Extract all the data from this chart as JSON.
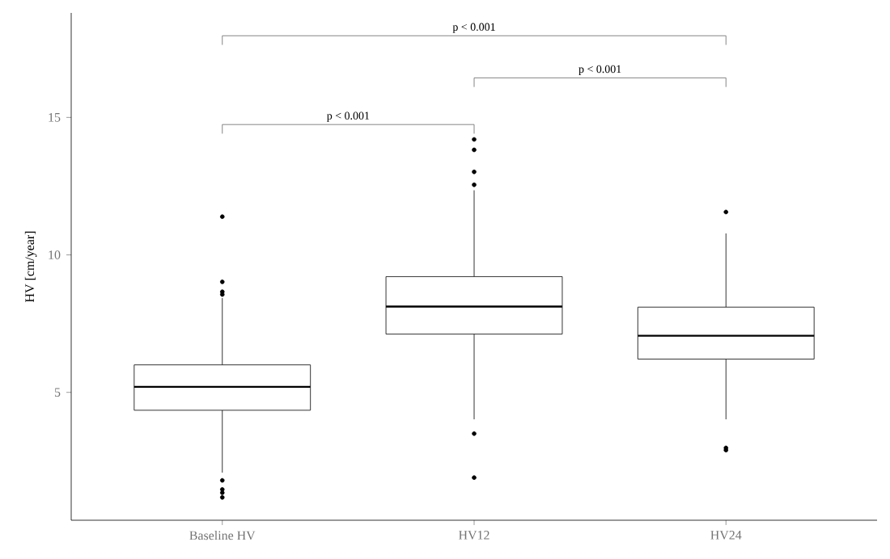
{
  "chart_data": {
    "type": "box",
    "ylabel": "HV [cm/year]",
    "categories": [
      "Baseline HV",
      "HV12",
      "HV24"
    ],
    "boxes": [
      {
        "low": 2.08,
        "q1": 4.35,
        "median": 5.2,
        "q3": 6.0,
        "high": 8.43,
        "outliers": [
          11.39,
          9.02,
          8.66,
          8.56,
          1.8,
          1.47,
          1.35,
          1.18
        ]
      },
      {
        "low": 4.02,
        "q1": 7.12,
        "median": 8.12,
        "q3": 9.21,
        "high": 12.35,
        "outliers": [
          14.2,
          13.82,
          13.02,
          12.55,
          3.5,
          1.9
        ]
      },
      {
        "low": 4.02,
        "q1": 6.21,
        "median": 7.06,
        "q3": 8.1,
        "high": 10.78,
        "outliers": [
          11.56,
          2.98,
          2.9
        ]
      }
    ],
    "ylim": [
      0.35,
      18.8
    ],
    "yticks": [
      5,
      10,
      15
    ],
    "annotations": [
      "p < 0.001",
      "p < 0.001",
      "p < 0.001"
    ]
  }
}
